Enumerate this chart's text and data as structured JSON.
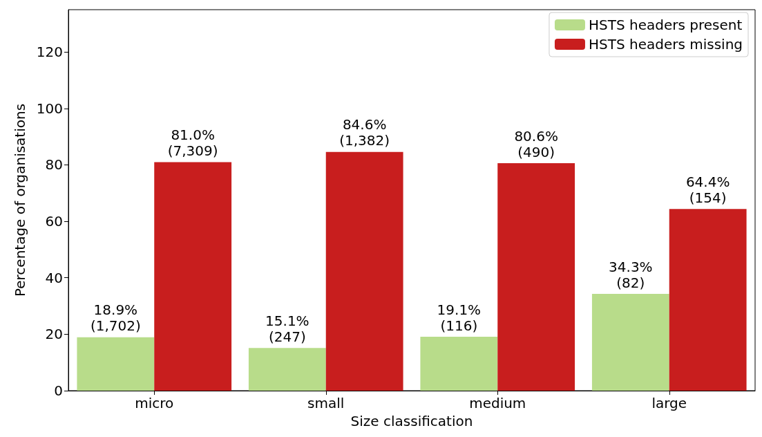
{
  "chart_data": {
    "type": "bar",
    "xlabel": "Size classification",
    "ylabel": "Percentage of organisations",
    "categories": [
      "micro",
      "small",
      "medium",
      "large"
    ],
    "series": [
      {
        "name": "HSTS headers present",
        "color": "#b8dc8a",
        "values": [
          18.9,
          15.1,
          19.1,
          34.3
        ],
        "value_labels": [
          "18.9%\n(1,702)",
          "15.1%\n(247)",
          "19.1%\n(116)",
          "34.3%\n(82)"
        ]
      },
      {
        "name": "HSTS headers missing",
        "color": "#c81e1e",
        "values": [
          81.0,
          84.6,
          80.6,
          64.4
        ],
        "value_labels": [
          "81.0%\n(7,309)",
          "84.6%\n(1,382)",
          "80.6%\n(490)",
          "64.4%\n(154)"
        ]
      }
    ],
    "ylim": [
      0,
      135
    ],
    "yticks": [
      0,
      20,
      40,
      60,
      80,
      100,
      120
    ],
    "grid": false,
    "legend": "top right"
  }
}
